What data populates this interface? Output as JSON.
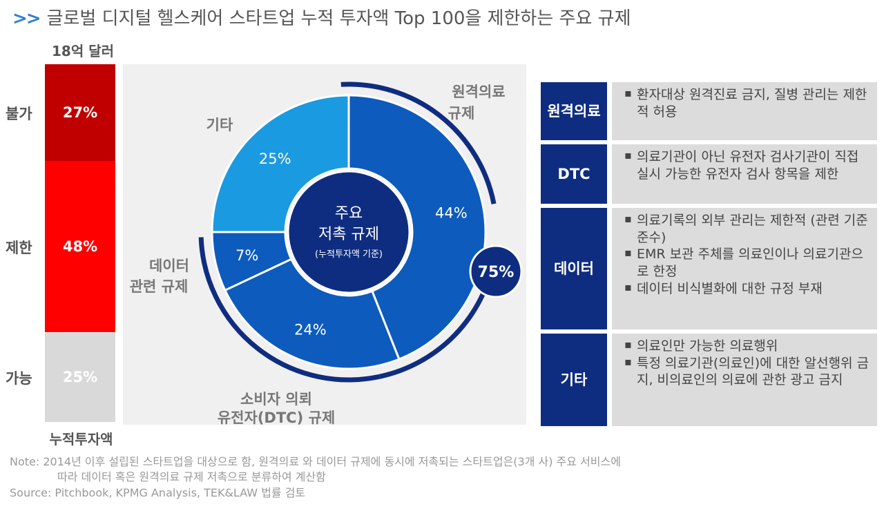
{
  "title": {
    "chevrons": ">>",
    "text": "글로벌 디지털 헬스케어 스타트업 누적 투자액 Top 100을 제한하는 주요 규제"
  },
  "stacked_bar": {
    "top_label": "18억 달러",
    "bottom_label": "누적투자액",
    "segments": [
      {
        "label": "불가",
        "value_label": "27%",
        "value": 27,
        "color": "#c00000"
      },
      {
        "label": "제한",
        "value_label": "48%",
        "value": 48,
        "color": "#ff0000"
      },
      {
        "label": "가능",
        "value_label": "25%",
        "value": 25,
        "color": "#d9d9d9"
      }
    ]
  },
  "chart_data": {
    "type": "pie",
    "center_title_line1": "주요",
    "center_title_line2": "저촉 규제",
    "center_subtitle": "(누적투자액 기준)",
    "slices": [
      {
        "label": "원격의료 규제",
        "value": 44,
        "value_label": "44%",
        "color": "#0d5bbd"
      },
      {
        "label": "소비자 의뢰 유전자(DTC) 규제",
        "value": 24,
        "value_label": "24%",
        "color": "#0d5bbd"
      },
      {
        "label": "데이터 관련 규제",
        "value": 7,
        "value_label": "7%",
        "color": "#0d5bbd"
      },
      {
        "label": "기타",
        "value": 25,
        "value_label": "25%",
        "color": "#1a9ae0"
      }
    ],
    "callout_labels": {
      "remote_line1": "원격의료",
      "remote_line2": "규제",
      "other": "기타",
      "data_line1": "데이터",
      "data_line2": "관련 규제",
      "dtc_line1": "소비자 의뢰",
      "dtc_line2": "유전자(DTC) 규제"
    },
    "combined_badge": "75%"
  },
  "regulations": [
    {
      "header_lines": [
        "원격",
        "의료"
      ],
      "bullets": [
        "환자대상 원격진료 금지, 질병 관리는 제한적 허용"
      ]
    },
    {
      "header_lines": [
        "DTC"
      ],
      "bullets": [
        "의료기관이 아닌 유전자 검사기관이 직접 실시 가능한 유전자 검사 항목을 제한"
      ]
    },
    {
      "header_lines": [
        "데이터"
      ],
      "bullets": [
        "의료기록의 외부 관리는 제한적 (관련 기준 준수)",
        "EMR 보관 주체를 의료인이나 의료기관으로 한정",
        "데이터 비식별화에 대한 규정 부재"
      ]
    },
    {
      "header_lines": [
        "기타"
      ],
      "bullets": [
        "의료인만 가능한 의료행위",
        "특정 의료기관(의료인)에 대한 알선행위 금지, 비의료인의 의료에 관한 광고 금지"
      ]
    }
  ],
  "note": {
    "line1": "Note: 2014년 이후 설립된 스타트업을 대상으로 함, 원격의료 와 데이터 규제에 동시에 저촉되는 스타트업은(3개 사) 주요 서비스에",
    "line2": "따라 데이터 혹은 원격의료 규제 저촉으로 분류하여 계산함",
    "source": "Source: Pitchbook, KPMG Analysis, TEK&LAW 법률 검토"
  }
}
